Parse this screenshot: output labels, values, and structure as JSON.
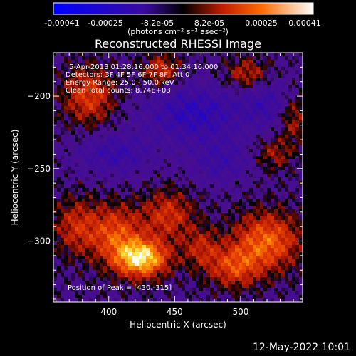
{
  "colorbar": {
    "ticks": [
      "-0.00041",
      "-0.00025",
      "-8.2e-05",
      "8.2e-05",
      "0.00025",
      "0.00041"
    ],
    "units": "(photons cm⁻² s⁻¹ asec⁻²)"
  },
  "title": "Reconstructed RHESSI Image",
  "info": {
    "line1": "5-Apr-2013 01:28:16.000 to 01:34:16.000",
    "line2": "Detectors: 3F 4F 5F 6F 7F 8F, Att 0",
    "line3": "Energy Range: 25.0 - 50.0 keV",
    "line4": "Clean    Total counts: 8.74E+03"
  },
  "peak_label": "Position of Peak = [430,-315]",
  "footer_date": "12-May-2022 10:01",
  "colors": {
    "axis": "#ffffff",
    "background": "#000000"
  },
  "chart_data": {
    "type": "heatmap",
    "title": "Reconstructed RHESSI Image",
    "xlabel": "Heliocentric X (arcsec)",
    "ylabel": "Heliocentric Y (arcsec)",
    "xlim": [
      358,
      547
    ],
    "ylim": [
      -342,
      -170
    ],
    "xticks": [
      400,
      450,
      500
    ],
    "yticks": [
      -300,
      -250,
      -200
    ],
    "xtick_labels": [
      "400",
      "450",
      "500"
    ],
    "ytick_labels": [
      "−300",
      "−250",
      "−200"
    ],
    "colorbar_range": [
      -0.00041,
      0.00041
    ],
    "peak": [
      430,
      -315
    ],
    "blobs": [
      {
        "x": 425,
        "y": -312,
        "sx": 14,
        "sy": 9,
        "a": 1.0
      },
      {
        "x": 405,
        "y": -295,
        "sx": 14,
        "sy": 14,
        "a": 0.55
      },
      {
        "x": 445,
        "y": -282,
        "sx": 14,
        "sy": 12,
        "a": 0.45
      },
      {
        "x": 375,
        "y": -290,
        "sx": 12,
        "sy": 14,
        "a": 0.4
      },
      {
        "x": 520,
        "y": -300,
        "sx": 18,
        "sy": 14,
        "a": 0.65
      },
      {
        "x": 495,
        "y": -318,
        "sx": 14,
        "sy": 10,
        "a": 0.5
      },
      {
        "x": 470,
        "y": -305,
        "sx": 10,
        "sy": 10,
        "a": 0.35
      },
      {
        "x": 385,
        "y": -200,
        "sx": 14,
        "sy": 14,
        "a": 0.5
      },
      {
        "x": 440,
        "y": -182,
        "sx": 10,
        "sy": 8,
        "a": 0.45
      },
      {
        "x": 505,
        "y": -185,
        "sx": 12,
        "sy": 8,
        "a": 0.4
      },
      {
        "x": 540,
        "y": -215,
        "sx": 8,
        "sy": 12,
        "a": 0.35
      },
      {
        "x": 525,
        "y": -240,
        "sx": 10,
        "sy": 8,
        "a": 0.3
      },
      {
        "x": 465,
        "y": -212,
        "sx": 26,
        "sy": 14,
        "a": -0.45
      },
      {
        "x": 520,
        "y": -205,
        "sx": 14,
        "sy": 12,
        "a": -0.3
      },
      {
        "x": 405,
        "y": -240,
        "sx": 20,
        "sy": 10,
        "a": -0.35
      },
      {
        "x": 485,
        "y": -245,
        "sx": 16,
        "sy": 10,
        "a": -0.3
      }
    ]
  }
}
